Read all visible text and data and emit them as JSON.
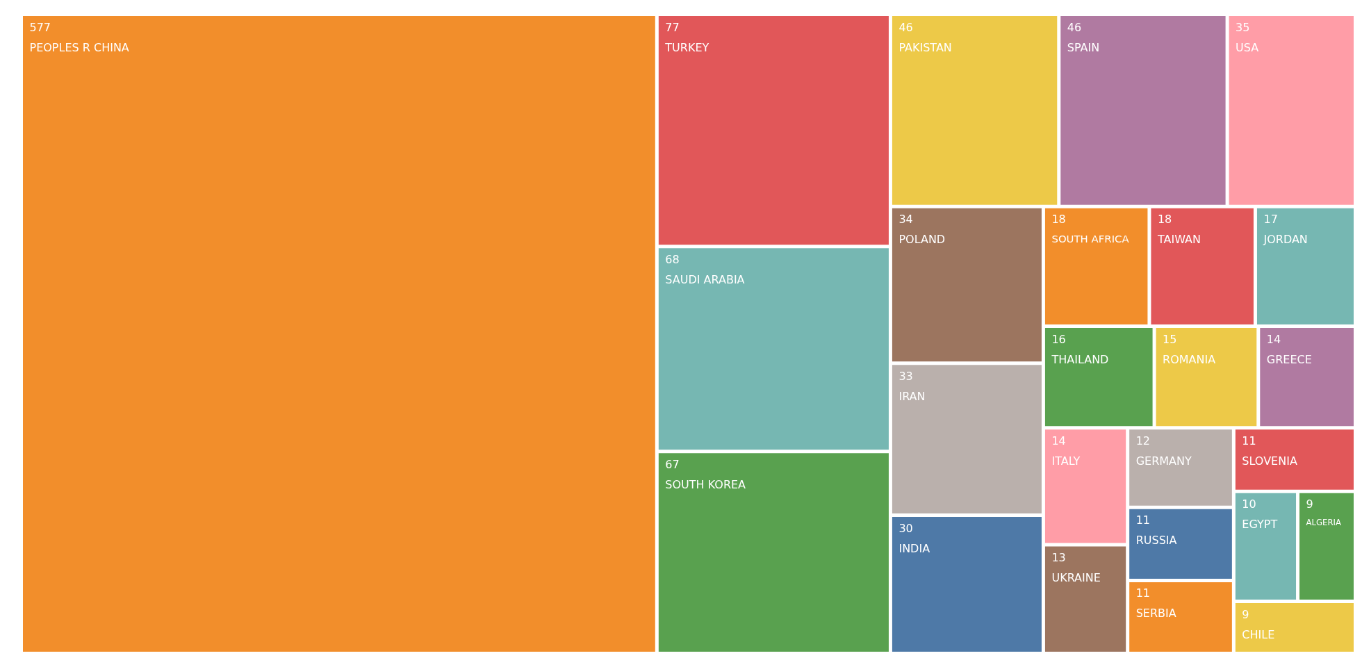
{
  "chart_data": {
    "type": "other",
    "categories": [
      "PEOPLES R CHINA",
      "TURKEY",
      "SAUDI ARABIA",
      "SOUTH KOREA",
      "PAKISTAN",
      "SPAIN",
      "USA",
      "POLAND",
      "IRAN",
      "INDIA",
      "SOUTH AFRICA",
      "TAIWAN",
      "JORDAN",
      "THAILAND",
      "ROMANIA",
      "GREECE",
      "ITALY",
      "UKRAINE",
      "GERMANY",
      "RUSSIA",
      "SERBIA",
      "SLOVENIA",
      "EGYPT",
      "ALGERIA",
      "CHILE"
    ],
    "values": [
      577,
      77,
      68,
      67,
      46,
      46,
      35,
      34,
      33,
      30,
      18,
      18,
      17,
      16,
      15,
      14,
      14,
      13,
      12,
      11,
      11,
      11,
      10,
      9,
      9
    ],
    "colors": [
      "#f28e2b",
      "#e15759",
      "#76b7b2",
      "#59a14f",
      "#edc948",
      "#b07aa1",
      "#ff9da7",
      "#9c755f",
      "#bab0ac",
      "#4e79a7",
      "#f28e2b",
      "#e15759",
      "#76b7b2",
      "#59a14f",
      "#edc948",
      "#b07aa1",
      "#ff9da7",
      "#9c755f",
      "#bab0ac",
      "#4e79a7",
      "#f28e2b",
      "#e15759",
      "#76b7b2",
      "#59a14f",
      "#edc948"
    ],
    "data_labels": true
  }
}
